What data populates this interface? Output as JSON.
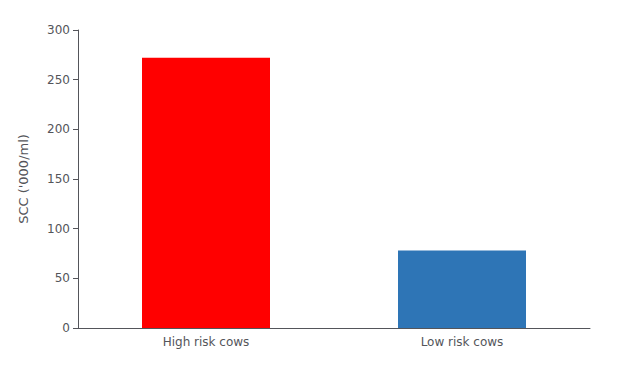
{
  "chart_data": {
    "type": "bar",
    "categories": [
      "High risk cows",
      "Low risk cows"
    ],
    "values": [
      272,
      78
    ],
    "colors": [
      "#ff0000",
      "#2e75b6"
    ],
    "ylabel": "SCC ('000/ml)",
    "ylim": [
      0,
      300
    ],
    "yticks": [
      0,
      50,
      100,
      150,
      200,
      250,
      300
    ],
    "grid": false
  }
}
